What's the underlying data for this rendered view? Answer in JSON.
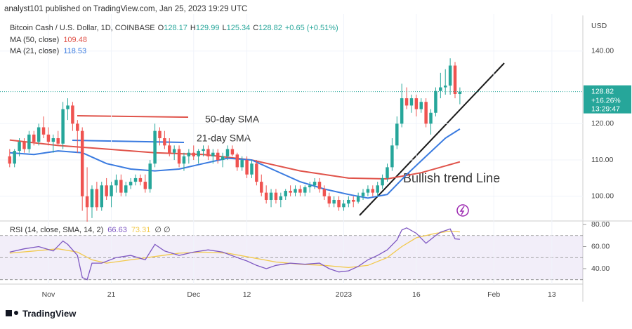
{
  "header": {
    "published": "analyst101 published on TradingView.com, Jan 25, 2023 19:29 UTC"
  },
  "footer": {
    "brand": "TradingView"
  },
  "chart_data": {
    "type": "candlestick",
    "title": "Bitcoin Cash / U.S. Dollar, 1D, COINBASE",
    "ohlc_labels": [
      "O",
      "H",
      "L",
      "C"
    ],
    "ohlc_last": [
      128.17,
      129.99,
      125.34,
      128.82
    ],
    "change": "+0.65 (+0.51%)",
    "currency": "USD",
    "last_price": 128.82,
    "last_change": "+16.26%",
    "countdown": "13:29:47",
    "up_color": "#26a69a",
    "down_color": "#ef5350",
    "x": [
      0,
      1,
      2,
      3,
      4,
      5,
      6,
      7,
      8,
      9,
      10,
      11,
      12,
      13,
      14,
      15,
      16,
      17,
      18,
      19,
      20,
      21,
      22,
      23,
      24,
      25,
      26,
      27,
      28,
      29,
      30,
      31,
      32,
      33,
      34,
      35,
      36,
      37,
      38,
      39,
      40,
      41,
      42,
      43,
      44,
      45,
      46,
      47,
      48,
      49,
      50,
      51,
      52,
      53,
      54,
      55,
      56,
      57,
      58,
      59,
      60,
      61,
      62,
      63,
      64,
      65,
      66,
      67,
      68,
      69,
      70,
      71,
      72,
      73,
      74,
      75,
      76,
      77,
      78,
      79,
      80,
      81,
      82,
      83,
      84,
      85,
      86,
      87,
      88,
      89,
      90,
      91,
      92,
      93
    ],
    "ohlc": [
      [
        111,
        113,
        108,
        109
      ],
      [
        109,
        113,
        108,
        112.5
      ],
      [
        112.5,
        116,
        111,
        115
      ],
      [
        115,
        116,
        112,
        113
      ],
      [
        113,
        118,
        112,
        117
      ],
      [
        117,
        118,
        114,
        115
      ],
      [
        115,
        120,
        114,
        119
      ],
      [
        119,
        122,
        116,
        117
      ],
      [
        117,
        119,
        114,
        115
      ],
      [
        115,
        117,
        112,
        116
      ],
      [
        116,
        118,
        114,
        114.5
      ],
      [
        114.5,
        126,
        113,
        124
      ],
      [
        124,
        127,
        121,
        125
      ],
      [
        125,
        126,
        118,
        120
      ],
      [
        120,
        121,
        112,
        118
      ],
      [
        118,
        119,
        96,
        100
      ],
      [
        100,
        108,
        93,
        97
      ],
      [
        97,
        103,
        94,
        102
      ],
      [
        102,
        104,
        96,
        97
      ],
      [
        97,
        104,
        96,
        103
      ],
      [
        103,
        105,
        99,
        100
      ],
      [
        100,
        104,
        97,
        103
      ],
      [
        103,
        106,
        101,
        104.5
      ],
      [
        104.5,
        106,
        100,
        101
      ],
      [
        101,
        104,
        100,
        103
      ],
      [
        103,
        105,
        102,
        104
      ],
      [
        104,
        106,
        103,
        105
      ],
      [
        105,
        106,
        103,
        104
      ],
      [
        104,
        106,
        101,
        102
      ],
      [
        102,
        110,
        101,
        109
      ],
      [
        109,
        120,
        108,
        118
      ],
      [
        118,
        119,
        114,
        116
      ],
      [
        116,
        118,
        113,
        114
      ],
      [
        114,
        116,
        111,
        112
      ],
      [
        112,
        114,
        110,
        113
      ],
      [
        113,
        114,
        108,
        109
      ],
      [
        109,
        112,
        107,
        111
      ],
      [
        111,
        113,
        109,
        112
      ],
      [
        112,
        114,
        110,
        111
      ],
      [
        111,
        113,
        109,
        112.5
      ],
      [
        112.5,
        114,
        111,
        113
      ],
      [
        113,
        114,
        110,
        111
      ],
      [
        111,
        113,
        109,
        112
      ],
      [
        112,
        113,
        109,
        110
      ],
      [
        110,
        112,
        108,
        111
      ],
      [
        111,
        114,
        110,
        113
      ],
      [
        113,
        114,
        111,
        111.5
      ],
      [
        111.5,
        112,
        107,
        108
      ],
      [
        108,
        111,
        107,
        110
      ],
      [
        110,
        111,
        105,
        106
      ],
      [
        106,
        110,
        105,
        109
      ],
      [
        109,
        110,
        103,
        104
      ],
      [
        104,
        106,
        100,
        101
      ],
      [
        101,
        103,
        98,
        99
      ],
      [
        99,
        102,
        97,
        101
      ],
      [
        101,
        102,
        98,
        99
      ],
      [
        99,
        101,
        97,
        100
      ],
      [
        100,
        102,
        99,
        101.5
      ],
      [
        101.5,
        103,
        100,
        101
      ],
      [
        101,
        103,
        100,
        102
      ],
      [
        102,
        103,
        100,
        101
      ],
      [
        101,
        103,
        100,
        102.5
      ],
      [
        102.5,
        104,
        101,
        103
      ],
      [
        103,
        105,
        102,
        104
      ],
      [
        104,
        105,
        101,
        102
      ],
      [
        102,
        103,
        99,
        100
      ],
      [
        100,
        101,
        97,
        98
      ],
      [
        98,
        100,
        97,
        99
      ],
      [
        99,
        100,
        96,
        97
      ],
      [
        97,
        99,
        96,
        98
      ],
      [
        98,
        100,
        97,
        99
      ],
      [
        99,
        100,
        97,
        98.5
      ],
      [
        98.5,
        101,
        98,
        100
      ],
      [
        100,
        102,
        99,
        101
      ],
      [
        101,
        103,
        100,
        102
      ],
      [
        102,
        103,
        100,
        101
      ],
      [
        101,
        104,
        100,
        103
      ],
      [
        103,
        106,
        102,
        105
      ],
      [
        105,
        109,
        104,
        108
      ],
      [
        108,
        116,
        107,
        114
      ],
      [
        114,
        122,
        113,
        120
      ],
      [
        120,
        131,
        119,
        127
      ],
      [
        127,
        130,
        124,
        125
      ],
      [
        125,
        128,
        123,
        127
      ],
      [
        127,
        128,
        122,
        124
      ],
      [
        124,
        127,
        123,
        126
      ],
      [
        126,
        127,
        119,
        120
      ],
      [
        120,
        124,
        117,
        123
      ],
      [
        123,
        130,
        122,
        129
      ],
      [
        129,
        134,
        127,
        130
      ],
      [
        130,
        135,
        128,
        130.5
      ],
      [
        130.5,
        138,
        128,
        136
      ],
      [
        136,
        137,
        127,
        128.17
      ],
      [
        128.17,
        129.99,
        125.34,
        128.82
      ]
    ],
    "xlim": [
      -2,
      118.4
    ],
    "xticks": [
      {
        "value": 8,
        "label": "Nov"
      },
      21,
      {
        "value": 38,
        "label": "Dec"
      },
      {
        "value": 49,
        "label": "12"
      },
      {
        "value": 69,
        "label": "2023"
      },
      {
        "value": 84,
        "label": "16"
      },
      {
        "value": 100,
        "label": "Feb"
      },
      {
        "value": 112,
        "label": "13"
      }
    ],
    "ylim": [
      93.2,
      150.2
    ],
    "yticks": [
      {
        "value": 100,
        "label": "100.00"
      },
      {
        "value": 110,
        "label": "110.00"
      },
      {
        "value": 120,
        "label": "120.00"
      },
      {
        "value": 140,
        "label": "140.00"
      }
    ],
    "series": [
      {
        "name": "MA (50, close)",
        "color": "#e0534a",
        "last": 109.48,
        "x": [
          0,
          10,
          20,
          30,
          40,
          50,
          60,
          70,
          78,
          85,
          93
        ],
        "values": [
          115.5,
          114,
          113,
          112,
          111.5,
          110,
          107,
          105,
          104.8,
          106.5,
          109.48
        ]
      },
      {
        "name": "MA (21, close)",
        "color": "#3a7be0",
        "last": 118.53,
        "x": [
          0,
          5,
          10,
          15,
          20,
          25,
          30,
          35,
          40,
          45,
          50,
          55,
          60,
          65,
          70,
          74,
          78,
          82,
          86,
          90,
          93
        ],
        "values": [
          112,
          111.5,
          112.5,
          112,
          109,
          107.5,
          107,
          107.5,
          109,
          110.5,
          110,
          107,
          104,
          102,
          100.5,
          99.5,
          100.5,
          106,
          111,
          116,
          118.53
        ]
      }
    ],
    "annotations": [
      {
        "text": "50-day SMA",
        "color": "#e0534a"
      },
      {
        "text": "21-day SMA",
        "color": "#3a7be0"
      },
      {
        "text": "Bullish trend Line",
        "color": "#1a1a1a"
      }
    ],
    "rsi": {
      "name": "RSI (14, close, SMA, 14, 2)",
      "last": 66.63,
      "sma_last": 73.31,
      "flags": "∅ ∅",
      "line_color": "#7e57c2",
      "sma_color": "#f2c94c",
      "ylim": [
        26,
        83.2
      ],
      "yticks": [
        {
          "value": 40,
          "label": "40.00"
        },
        {
          "value": 60,
          "label": "60.00"
        },
        {
          "value": 80,
          "label": "80.00"
        }
      ],
      "bands": [
        70,
        50,
        30
      ],
      "x": [
        0,
        3,
        6,
        9,
        11,
        12,
        14,
        15,
        16,
        17,
        19,
        22,
        25,
        28,
        30,
        32,
        35,
        38,
        41,
        44,
        47,
        49,
        51,
        53,
        55,
        58,
        61,
        64,
        66,
        68,
        70,
        72,
        74,
        76,
        78,
        80,
        81,
        82,
        84,
        86,
        88,
        89,
        91,
        92,
        93
      ],
      "values": [
        55,
        58,
        60,
        56,
        65,
        62,
        52,
        32,
        30,
        45,
        45,
        50,
        52,
        48,
        62,
        56,
        52,
        55,
        57,
        55,
        50,
        47,
        43,
        40,
        43,
        45,
        44,
        45,
        40,
        37,
        38,
        42,
        48,
        52,
        57,
        66,
        75,
        77,
        72,
        63,
        70,
        73,
        76,
        67,
        66.63
      ],
      "sma_x": [
        0,
        5,
        10,
        14,
        17,
        20,
        25,
        30,
        35,
        40,
        45,
        50,
        55,
        60,
        65,
        70,
        74,
        78,
        81,
        84,
        88,
        91,
        93
      ],
      "sma": [
        54,
        56,
        58,
        55,
        48,
        45,
        48,
        51,
        54,
        55,
        54,
        50,
        46,
        44,
        43,
        41,
        43,
        50,
        60,
        68,
        72,
        74,
        73.31
      ]
    }
  }
}
